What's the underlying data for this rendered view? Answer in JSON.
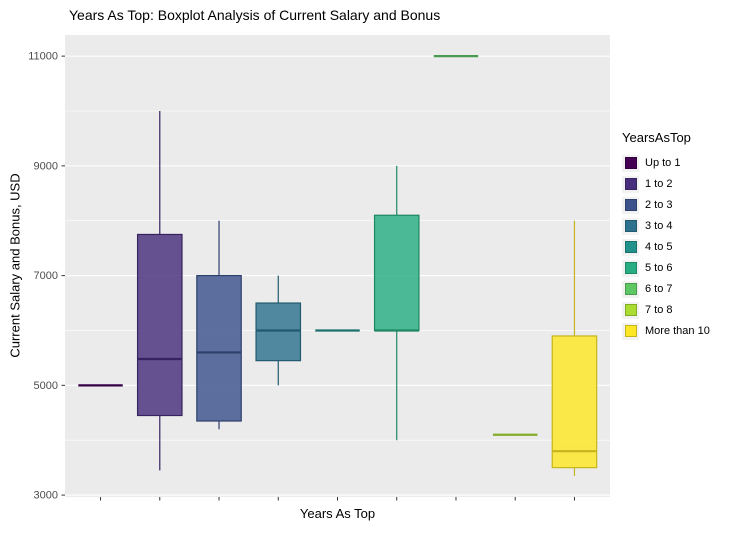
{
  "chart_data": {
    "type": "boxplot",
    "title": "Years As Top: Boxplot Analysis of Current Salary and Bonus",
    "xlabel": "Years As Top",
    "ylabel": "Current Salary and Bonus, USD",
    "legend_title": "YearsAsTop",
    "ylim": [
      3000,
      11000
    ],
    "yticks": [
      3000,
      5000,
      7000,
      9000,
      11000
    ],
    "x_tick_labels_visible": false,
    "grid": "horizontal-white-on-gray",
    "legend_position": "right",
    "panel_background": "#EBEBEB",
    "gridline_color": "#FFFFFF",
    "tick_color": "#333333",
    "tick_label_color": "#4D4D4D",
    "groups": [
      {
        "label": "Up to 1",
        "color": "#440154",
        "min": 5000,
        "q1": 5000,
        "median": 5000,
        "q3": 5000,
        "max": 5000
      },
      {
        "label": "1 to 2",
        "color": "#472D7B",
        "min": 3450,
        "q1": 4450,
        "median": 5480,
        "q3": 7750,
        "max": 10000
      },
      {
        "label": "2 to 3",
        "color": "#3B528B",
        "min": 4200,
        "q1": 4350,
        "median": 5600,
        "q3": 7000,
        "max": 8000
      },
      {
        "label": "3 to 4",
        "color": "#2C728E",
        "min": 5000,
        "q1": 5450,
        "median": 6000,
        "q3": 6500,
        "max": 7000
      },
      {
        "label": "4 to 5",
        "color": "#21918C",
        "min": 6000,
        "q1": 6000,
        "median": 6000,
        "q3": 6000,
        "max": 6000
      },
      {
        "label": "5 to 6",
        "color": "#27AD81",
        "min": 4000,
        "q1": 6000,
        "median": 6000,
        "q3": 8100,
        "max": 9000
      },
      {
        "label": "6 to 7",
        "color": "#5DC863",
        "min": 11000,
        "q1": 11000,
        "median": 11000,
        "q3": 11000,
        "max": 11000
      },
      {
        "label": "7 to 8",
        "color": "#AADC32",
        "min": 4100,
        "q1": 4100,
        "median": 4100,
        "q3": 4100,
        "max": 4100
      },
      {
        "label": "More than 10",
        "color": "#FDE725",
        "min": 3350,
        "q1": 3500,
        "median": 3800,
        "q3": 5900,
        "max": 8000
      }
    ]
  }
}
